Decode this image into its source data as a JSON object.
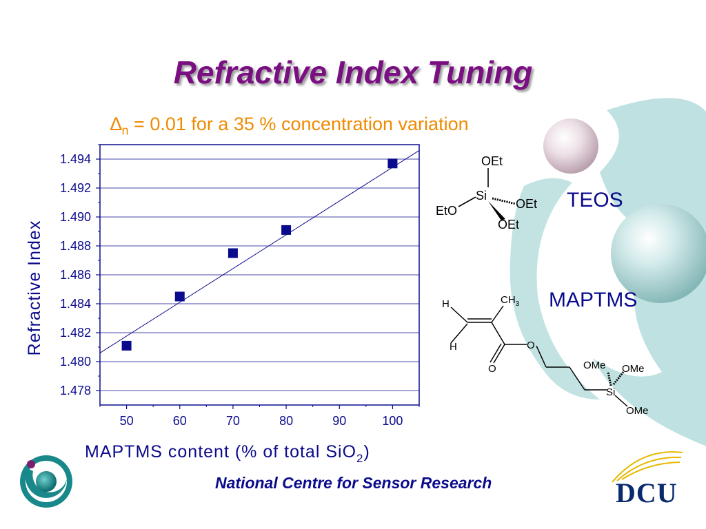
{
  "slide": {
    "title": "Refractive Index Tuning",
    "subtitle": {
      "symbol": "∆",
      "subscript": "n",
      "text": " = 0.01 for a 35 % concentration variation"
    },
    "footer": "National Centre for Sensor Research",
    "dcu_logo_text": "DCU",
    "colors": {
      "title": "#7a0f82",
      "subtitle": "#f08a00",
      "chart": "#0a0a8c",
      "teal": "#9fd2d2"
    }
  },
  "chart_data": {
    "type": "scatter",
    "xlabel": "MAPTMS content (% of total SiO",
    "xlabel_subscript": "2",
    "xlabel_suffix": ")",
    "ylabel": "Refractive Index",
    "xlim": [
      45,
      105
    ],
    "ylim": [
      1.477,
      1.495
    ],
    "x_ticks": [
      50,
      60,
      70,
      80,
      90,
      100
    ],
    "y_ticks": [
      1.478,
      1.48,
      1.482,
      1.484,
      1.486,
      1.488,
      1.49,
      1.492,
      1.494
    ],
    "grid": "horizontal",
    "series": [
      {
        "x": [
          50,
          60,
          70,
          80,
          100
        ],
        "y": [
          1.4811,
          1.4845,
          1.4875,
          1.4891,
          1.4937
        ],
        "marker": "square",
        "color": "#0a0a8c"
      }
    ],
    "fit_line": {
      "x": [
        45,
        105
      ],
      "y": [
        1.4806,
        1.4946
      ]
    }
  },
  "chemistry": {
    "teos": {
      "label": "TEOS",
      "atoms": {
        "si": "Si",
        "oet_top": "OEt",
        "oet_right": "OEt",
        "oet_bottom": "OEt",
        "eto_left": "EtO"
      }
    },
    "maptms": {
      "label": "MAPTMS",
      "atoms": {
        "h_top": "H",
        "h_bottom": "H",
        "ch3": "CH",
        "ch3_sub": "3",
        "o_carbonyl": "O",
        "o_ester": "O",
        "si": "Si",
        "ome_1": "OMe",
        "ome_2": "OMe",
        "ome_3": "OMe"
      }
    }
  }
}
